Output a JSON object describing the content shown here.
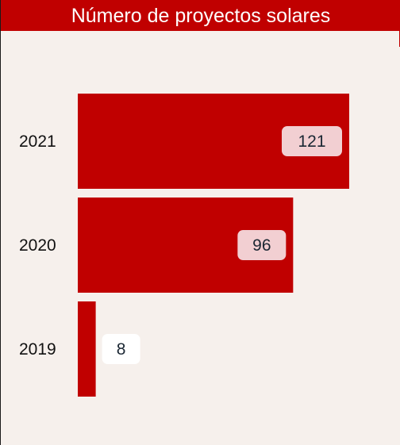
{
  "title": "Número de proyectos solares",
  "colors": {
    "bar": "#c00000",
    "background": "#f6f0ec",
    "label_box_inside": "#f2cfd2",
    "label_box_outside": "#ffffff"
  },
  "chart_data": {
    "type": "bar",
    "orientation": "horizontal",
    "title": "Número de proyectos solares",
    "categories": [
      "2021",
      "2020",
      "2019"
    ],
    "values": [
      121,
      96,
      8
    ],
    "xlabel": "",
    "ylabel": "",
    "xlim": [
      0,
      121
    ],
    "grid": false,
    "legend": "none",
    "data_labels": [
      "121",
      "96",
      "8"
    ]
  }
}
